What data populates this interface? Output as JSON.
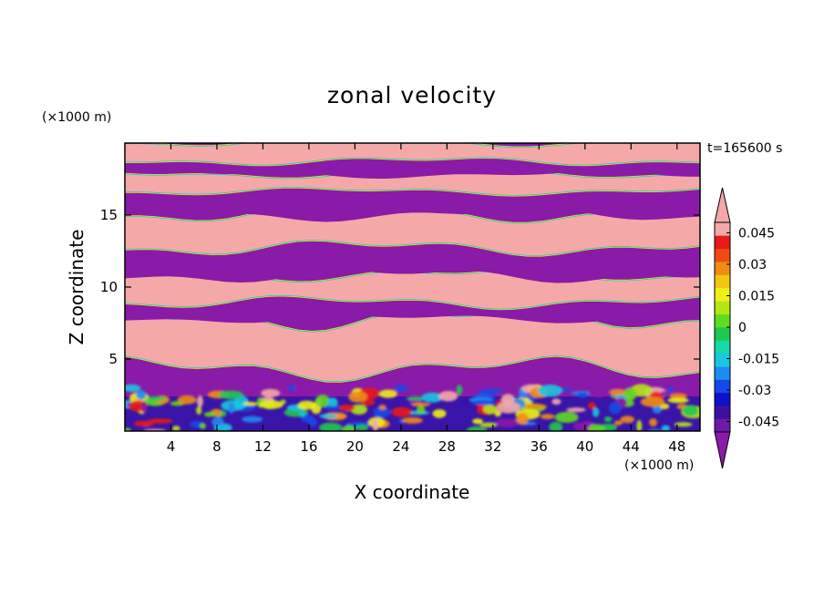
{
  "chart_data": {
    "type": "heatmap",
    "title": "zonal velocity",
    "xlabel": "X coordinate",
    "ylabel": "Z coordinate",
    "x_unit": "(×1000 m)",
    "y_unit": "(×1000 m)",
    "time_label": "t=165600 s",
    "xlim": [
      0,
      50
    ],
    "ylim": [
      0,
      20
    ],
    "x_ticks": [
      4,
      8,
      12,
      16,
      20,
      24,
      28,
      32,
      36,
      40,
      44,
      48
    ],
    "y_ticks": [
      5,
      10,
      15
    ],
    "colorbar": {
      "min": -0.05,
      "max": 0.05,
      "extend": "both",
      "tick_labels": [
        "0.045",
        "0.03",
        "0.015",
        "0",
        "-0.015",
        "-0.03",
        "-0.045"
      ],
      "tick_values": [
        0.045,
        0.03,
        0.015,
        0,
        -0.015,
        -0.03,
        -0.045
      ],
      "colors": [
        "#6e1aa8",
        "#3f10a0",
        "#1010c8",
        "#1448e8",
        "#1e8cf0",
        "#18c8e0",
        "#18d8a8",
        "#20c850",
        "#60dc20",
        "#b4e614",
        "#f0f014",
        "#f0c814",
        "#f08c14",
        "#f04a14",
        "#e81a1a",
        "#f4a8a8"
      ],
      "under_color": "#8a1aa8",
      "over_color": "#f4a8a8"
    },
    "bands": [
      {
        "z_bottom": 0.0,
        "z_top": 2.4,
        "mean_u": -0.01,
        "note": "turbulent surface layer"
      },
      {
        "z_bottom": 2.4,
        "z_top": 4.4,
        "mean_u": -0.05
      },
      {
        "z_bottom": 4.4,
        "z_top": 7.8,
        "mean_u": 0.05
      },
      {
        "z_bottom": 7.8,
        "z_top": 9.0,
        "mean_u": -0.05
      },
      {
        "z_bottom": 9.0,
        "z_top": 10.8,
        "mean_u": 0.05
      },
      {
        "z_bottom": 10.8,
        "z_top": 12.8,
        "mean_u": -0.05
      },
      {
        "z_bottom": 12.8,
        "z_top": 15.0,
        "mean_u": 0.05
      },
      {
        "z_bottom": 15.0,
        "z_top": 16.7,
        "mean_u": -0.05
      },
      {
        "z_bottom": 16.7,
        "z_top": 17.8,
        "mean_u": 0.05
      },
      {
        "z_bottom": 17.8,
        "z_top": 18.8,
        "mean_u": -0.05
      },
      {
        "z_bottom": 18.8,
        "z_top": 20.0,
        "mean_u": 0.05
      }
    ],
    "grid": false,
    "legend": "right colorbar"
  }
}
